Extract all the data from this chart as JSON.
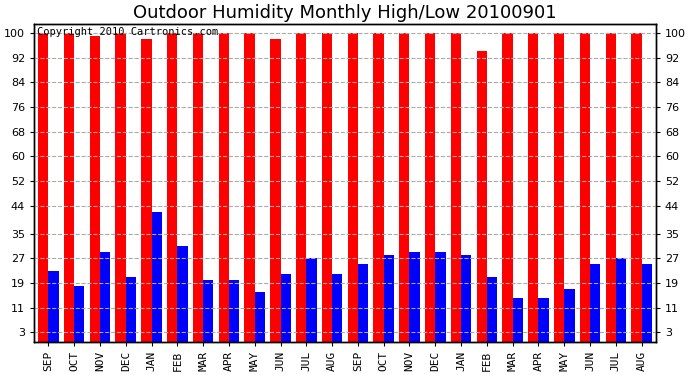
{
  "title": "Outdoor Humidity Monthly High/Low 20100901",
  "copyright": "Copyright 2010 Cartronics.com",
  "categories": [
    "SEP",
    "OCT",
    "NOV",
    "DEC",
    "JAN",
    "FEB",
    "MAR",
    "APR",
    "MAY",
    "JUN",
    "JUL",
    "AUG",
    "SEP",
    "OCT",
    "NOV",
    "DEC",
    "JAN",
    "FEB",
    "MAR",
    "APR",
    "MAY",
    "JUN",
    "JUL",
    "AUG"
  ],
  "highs": [
    100,
    100,
    99,
    100,
    98,
    100,
    100,
    100,
    100,
    98,
    100,
    100,
    100,
    100,
    100,
    100,
    100,
    94,
    100,
    100,
    100,
    100,
    100,
    100
  ],
  "lows": [
    23,
    18,
    29,
    21,
    42,
    31,
    20,
    20,
    16,
    22,
    27,
    22,
    25,
    28,
    29,
    29,
    28,
    21,
    14,
    14,
    17,
    25,
    27,
    25
  ],
  "bar_color_high": "#ff0000",
  "bar_color_low": "#0000ff",
  "background_color": "#ffffff",
  "plot_bg_color": "#ffffff",
  "yticks": [
    3,
    11,
    19,
    27,
    35,
    44,
    52,
    60,
    68,
    76,
    84,
    92,
    100
  ],
  "ylim": [
    0,
    103
  ],
  "grid_color": "#aaaaaa",
  "title_fontsize": 13,
  "tick_fontsize": 8,
  "copyright_fontsize": 7.5
}
